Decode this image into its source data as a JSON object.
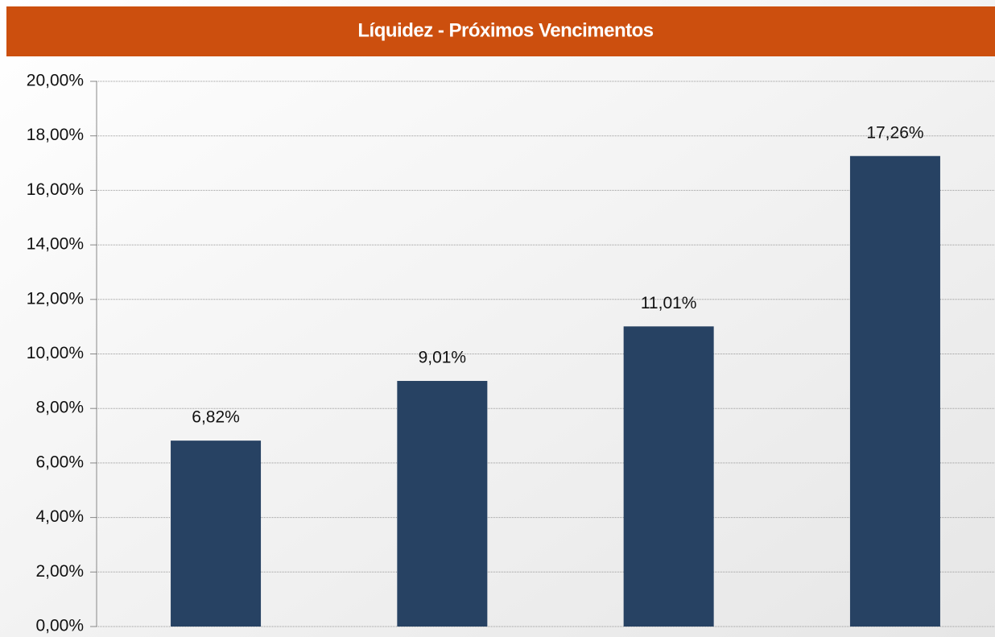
{
  "chart_data": {
    "type": "bar",
    "title": "Líquidez - Próximos Vencimentos",
    "categories": [
      null,
      null,
      null,
      null
    ],
    "values": [
      6.82,
      9.01,
      11.01,
      17.26
    ],
    "value_labels": [
      "6,82%",
      "9,01%",
      "11,01%",
      "17,26%"
    ],
    "color": "#274263",
    "ylim": [
      0,
      20
    ],
    "yticks": [
      {
        "value": 0,
        "label": "0,00%"
      },
      {
        "value": 2,
        "label": "2,00%"
      },
      {
        "value": 4,
        "label": "4,00%"
      },
      {
        "value": 6,
        "label": "6,00%"
      },
      {
        "value": 8,
        "label": "8,00%"
      },
      {
        "value": 10,
        "label": "10,00%"
      },
      {
        "value": 12,
        "label": "12,00%"
      },
      {
        "value": 14,
        "label": "14,00%"
      },
      {
        "value": 16,
        "label": "16,00%"
      },
      {
        "value": 18,
        "label": "18,00%"
      },
      {
        "value": 20,
        "label": "20,00%"
      }
    ],
    "grid": true
  }
}
